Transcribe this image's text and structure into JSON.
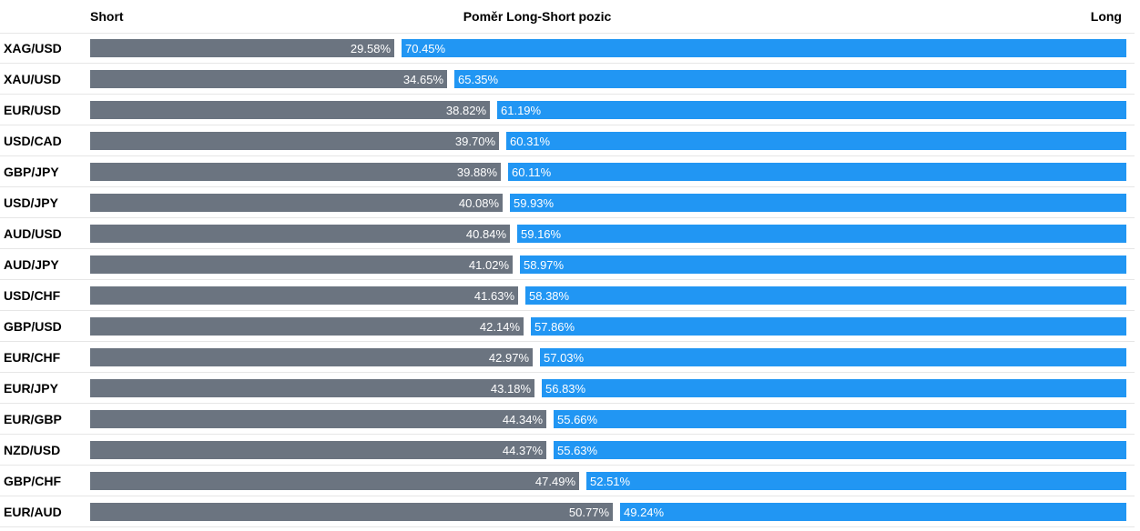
{
  "chart_data": {
    "type": "bar",
    "title": "Poměr Long-Short pozic",
    "short_label": "Short",
    "long_label": "Long",
    "colors": {
      "short": "#6b7480",
      "long": "#2196f3"
    },
    "rows": [
      {
        "pair": "XAG/USD",
        "short": "29.58%",
        "long": "70.45%",
        "short_value": 29.58,
        "long_value": 70.45
      },
      {
        "pair": "XAU/USD",
        "short": "34.65%",
        "long": "65.35%",
        "short_value": 34.65,
        "long_value": 65.35
      },
      {
        "pair": "EUR/USD",
        "short": "38.82%",
        "long": "61.19%",
        "short_value": 38.82,
        "long_value": 61.19
      },
      {
        "pair": "USD/CAD",
        "short": "39.70%",
        "long": "60.31%",
        "short_value": 39.7,
        "long_value": 60.31
      },
      {
        "pair": "GBP/JPY",
        "short": "39.88%",
        "long": "60.11%",
        "short_value": 39.88,
        "long_value": 60.11
      },
      {
        "pair": "USD/JPY",
        "short": "40.08%",
        "long": "59.93%",
        "short_value": 40.08,
        "long_value": 59.93
      },
      {
        "pair": "AUD/USD",
        "short": "40.84%",
        "long": "59.16%",
        "short_value": 40.84,
        "long_value": 59.16
      },
      {
        "pair": "AUD/JPY",
        "short": "41.02%",
        "long": "58.97%",
        "short_value": 41.02,
        "long_value": 58.97
      },
      {
        "pair": "USD/CHF",
        "short": "41.63%",
        "long": "58.38%",
        "short_value": 41.63,
        "long_value": 58.38
      },
      {
        "pair": "GBP/USD",
        "short": "42.14%",
        "long": "57.86%",
        "short_value": 42.14,
        "long_value": 57.86
      },
      {
        "pair": "EUR/CHF",
        "short": "42.97%",
        "long": "57.03%",
        "short_value": 42.97,
        "long_value": 57.03
      },
      {
        "pair": "EUR/JPY",
        "short": "43.18%",
        "long": "56.83%",
        "short_value": 43.18,
        "long_value": 56.83
      },
      {
        "pair": "EUR/GBP",
        "short": "44.34%",
        "long": "55.66%",
        "short_value": 44.34,
        "long_value": 55.66
      },
      {
        "pair": "NZD/USD",
        "short": "44.37%",
        "long": "55.63%",
        "short_value": 44.37,
        "long_value": 55.63
      },
      {
        "pair": "GBP/CHF",
        "short": "47.49%",
        "long": "52.51%",
        "short_value": 47.49,
        "long_value": 52.51
      },
      {
        "pair": "EUR/AUD",
        "short": "50.77%",
        "long": "49.24%",
        "short_value": 50.77,
        "long_value": 49.24
      }
    ]
  }
}
